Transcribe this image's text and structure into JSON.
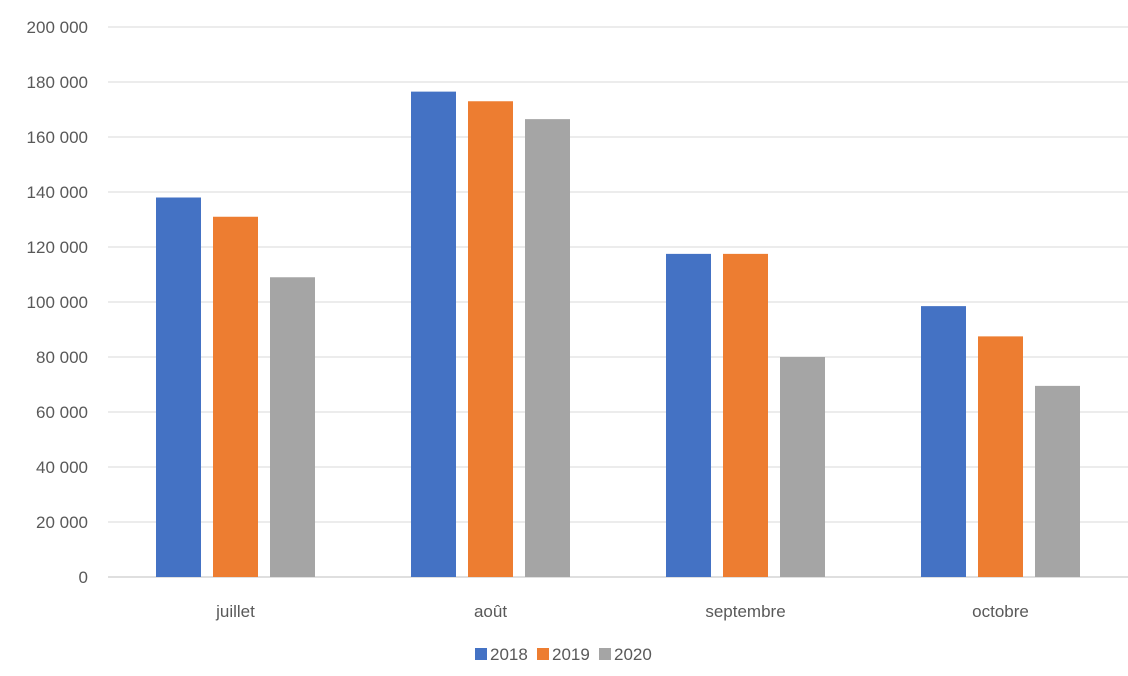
{
  "chart_data": {
    "type": "bar",
    "categories": [
      "juillet",
      "août",
      "septembre",
      "octobre"
    ],
    "series": [
      {
        "name": "2018",
        "color": "#4472C4",
        "values": [
          138000,
          176500,
          117500,
          98500
        ]
      },
      {
        "name": "2019",
        "color": "#ED7D31",
        "values": [
          131000,
          173000,
          117500,
          87500
        ]
      },
      {
        "name": "2020",
        "color": "#A5A5A5",
        "values": [
          109000,
          166500,
          80000,
          69500
        ]
      }
    ],
    "ylim": [
      0,
      200000
    ],
    "yticks": [
      0,
      20000,
      40000,
      60000,
      80000,
      100000,
      120000,
      140000,
      160000,
      180000,
      200000
    ],
    "ytick_labels": [
      "0",
      "20 000",
      "40 000",
      "60 000",
      "80 000",
      "100 000",
      "120 000",
      "140 000",
      "160 000",
      "180 000",
      "200 000"
    ],
    "grid": true,
    "legend_position": "bottom"
  }
}
